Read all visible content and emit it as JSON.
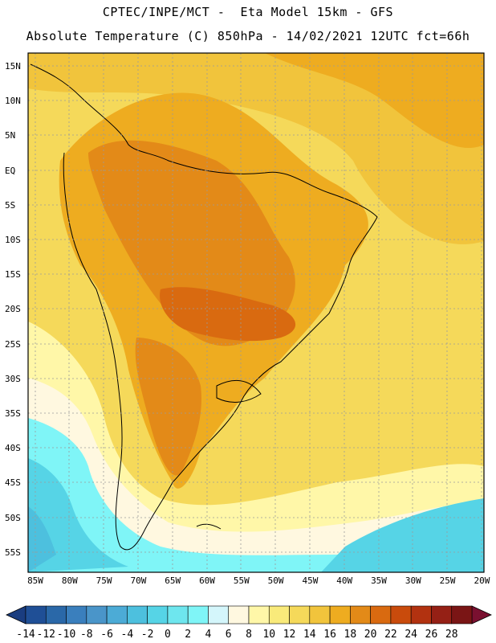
{
  "header": {
    "line1": "CPTEC/INPE/MCT -  Eta Model 15km - GFS",
    "line2": "Absolute Temperature (C) 850hPa - 14/02/2021 12UTC fct=66h"
  },
  "axes": {
    "lat_labels": [
      "15N",
      "10N",
      "5N",
      "EQ",
      "5S",
      "10S",
      "15S",
      "20S",
      "25S",
      "30S",
      "35S",
      "40S",
      "45S",
      "50S",
      "55S"
    ],
    "lon_labels": [
      "85W",
      "80W",
      "75W",
      "70W",
      "65W",
      "60W",
      "55W",
      "50W",
      "45W",
      "40W",
      "35W",
      "30W",
      "25W",
      "20W"
    ]
  },
  "colorbar": {
    "labels": [
      "-14",
      "-12",
      "-10",
      "-8",
      "-6",
      "-4",
      "-2",
      "0",
      "2",
      "4",
      "6",
      "8",
      "10",
      "12",
      "14",
      "16",
      "18",
      "20",
      "22",
      "24",
      "26",
      "28"
    ],
    "colors": [
      "#1f4f96",
      "#2a68a8",
      "#3a7fbd",
      "#4a95c9",
      "#4cabd6",
      "#4dc0de",
      "#56d4e6",
      "#6ee6ee",
      "#7ff5f7",
      "#d4f6fb",
      "#fff8e0",
      "#fff7a8",
      "#f9ea7a",
      "#f5d95a",
      "#f1c43c",
      "#eeac20",
      "#e38a18",
      "#d96a10",
      "#c94b0c",
      "#b23210",
      "#952015",
      "#7a1515"
    ],
    "low_cap_color": "#1a3d80",
    "high_cap_color": "#7a1030"
  }
}
